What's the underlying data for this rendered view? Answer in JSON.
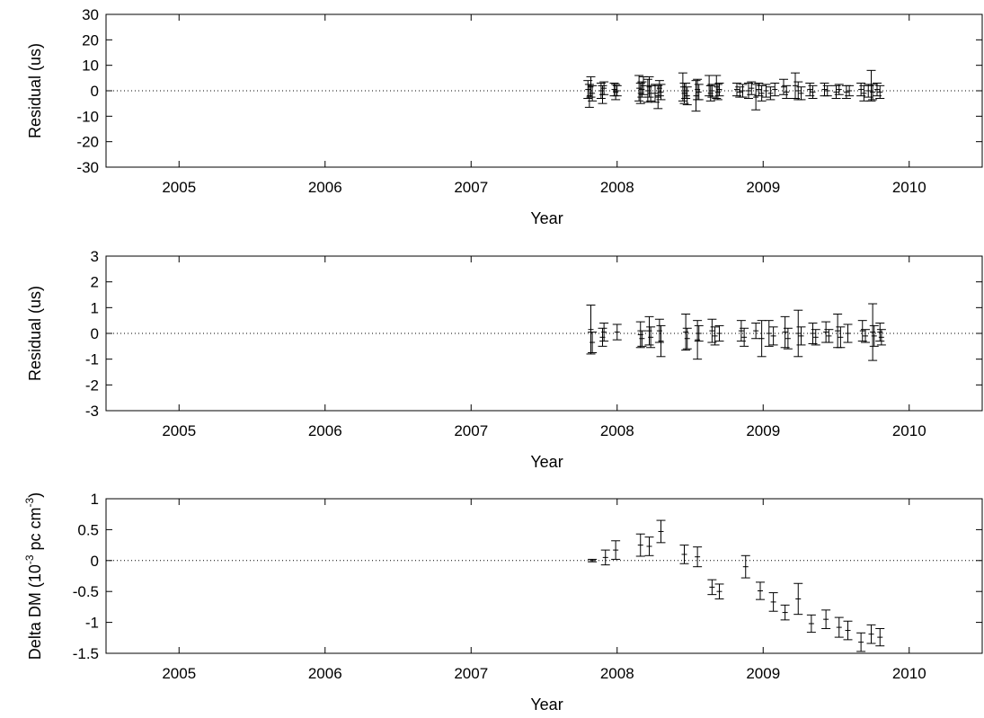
{
  "chart_data": [
    {
      "type": "scatter",
      "xlabel": "Year",
      "ylabel": "Residual (us)",
      "xlim": [
        2004.5,
        2010.5
      ],
      "ylim": [
        -30,
        30
      ],
      "xticks": [
        "2005",
        "2006",
        "2007",
        "2008",
        "2009",
        "2010"
      ],
      "yticks": [
        "-30",
        "-20",
        "-10",
        "0",
        "10",
        "20",
        "30"
      ],
      "grid": false,
      "zero_line": true,
      "series": [
        {
          "values": [
            {
              "x": 2007.8,
              "y": 0.5,
              "err": 3.5
            },
            {
              "x": 2007.81,
              "y": -2.0,
              "err": 4.5
            },
            {
              "x": 2007.82,
              "y": 1.5,
              "err": 4.0
            },
            {
              "x": 2007.83,
              "y": -1.0,
              "err": 3.0
            },
            {
              "x": 2007.89,
              "y": 0.0,
              "err": 3.0
            },
            {
              "x": 2007.9,
              "y": -1.5,
              "err": 3.5
            },
            {
              "x": 2007.91,
              "y": 1.0,
              "err": 2.5
            },
            {
              "x": 2007.98,
              "y": 0.5,
              "err": 2.5
            },
            {
              "x": 2007.99,
              "y": -0.5,
              "err": 3.0
            },
            {
              "x": 2008.0,
              "y": 0.0,
              "err": 2.0
            },
            {
              "x": 2008.15,
              "y": 1.0,
              "err": 5.0
            },
            {
              "x": 2008.16,
              "y": -1.0,
              "err": 4.0
            },
            {
              "x": 2008.17,
              "y": 0.5,
              "err": 3.0
            },
            {
              "x": 2008.18,
              "y": 2.0,
              "err": 3.5
            },
            {
              "x": 2008.21,
              "y": 0.0,
              "err": 4.5
            },
            {
              "x": 2008.22,
              "y": 1.5,
              "err": 4.0
            },
            {
              "x": 2008.23,
              "y": -1.0,
              "err": 3.0
            },
            {
              "x": 2008.26,
              "y": -1.0,
              "err": 3.5
            },
            {
              "x": 2008.28,
              "y": -2.5,
              "err": 4.5
            },
            {
              "x": 2008.29,
              "y": 1.0,
              "err": 3.0
            },
            {
              "x": 2008.3,
              "y": -0.5,
              "err": 3.0
            },
            {
              "x": 2008.45,
              "y": 1.5,
              "err": 5.5
            },
            {
              "x": 2008.46,
              "y": -1.0,
              "err": 4.0
            },
            {
              "x": 2008.47,
              "y": 0.0,
              "err": 3.0
            },
            {
              "x": 2008.48,
              "y": -2.0,
              "err": 3.5
            },
            {
              "x": 2008.54,
              "y": -2.0,
              "err": 6.0
            },
            {
              "x": 2008.55,
              "y": 0.5,
              "err": 4.0
            },
            {
              "x": 2008.56,
              "y": -0.5,
              "err": 3.0
            },
            {
              "x": 2008.63,
              "y": 2.0,
              "err": 4.0
            },
            {
              "x": 2008.64,
              "y": -1.0,
              "err": 3.0
            },
            {
              "x": 2008.65,
              "y": 0.0,
              "err": 2.5
            },
            {
              "x": 2008.68,
              "y": 1.5,
              "err": 4.5
            },
            {
              "x": 2008.69,
              "y": -0.5,
              "err": 3.0
            },
            {
              "x": 2008.7,
              "y": 0.5,
              "err": 2.5
            },
            {
              "x": 2008.82,
              "y": 0.5,
              "err": 2.5
            },
            {
              "x": 2008.84,
              "y": -0.5,
              "err": 2.0
            },
            {
              "x": 2008.86,
              "y": 0.0,
              "err": 2.5
            },
            {
              "x": 2008.9,
              "y": 0.0,
              "err": 3.0
            },
            {
              "x": 2008.92,
              "y": 1.0,
              "err": 2.5
            },
            {
              "x": 2008.95,
              "y": -2.5,
              "err": 5.0
            },
            {
              "x": 2008.97,
              "y": 0.5,
              "err": 2.5
            },
            {
              "x": 2008.99,
              "y": -1.0,
              "err": 3.0
            },
            {
              "x": 2009.02,
              "y": 0.0,
              "err": 2.5
            },
            {
              "x": 2009.05,
              "y": -1.0,
              "err": 2.5
            },
            {
              "x": 2009.08,
              "y": 0.5,
              "err": 2.5
            },
            {
              "x": 2009.14,
              "y": 1.5,
              "err": 3.0
            },
            {
              "x": 2009.16,
              "y": -0.5,
              "err": 2.5
            },
            {
              "x": 2009.22,
              "y": 2.0,
              "err": 5.0
            },
            {
              "x": 2009.24,
              "y": 0.0,
              "err": 3.5
            },
            {
              "x": 2009.26,
              "y": -1.0,
              "err": 2.5
            },
            {
              "x": 2009.32,
              "y": 0.5,
              "err": 2.5
            },
            {
              "x": 2009.34,
              "y": -0.5,
              "err": 2.5
            },
            {
              "x": 2009.42,
              "y": 0.5,
              "err": 2.5
            },
            {
              "x": 2009.44,
              "y": 0.0,
              "err": 2.0
            },
            {
              "x": 2009.5,
              "y": -0.5,
              "err": 2.5
            },
            {
              "x": 2009.52,
              "y": 0.5,
              "err": 2.0
            },
            {
              "x": 2009.57,
              "y": -0.5,
              "err": 2.5
            },
            {
              "x": 2009.59,
              "y": 0.0,
              "err": 2.0
            },
            {
              "x": 2009.67,
              "y": 0.5,
              "err": 2.5
            },
            {
              "x": 2009.69,
              "y": -1.0,
              "err": 3.0
            },
            {
              "x": 2009.72,
              "y": 0.0,
              "err": 2.5
            },
            {
              "x": 2009.74,
              "y": 2.0,
              "err": 6.0
            },
            {
              "x": 2009.75,
              "y": -0.5,
              "err": 3.0
            },
            {
              "x": 2009.78,
              "y": 0.5,
              "err": 2.5
            },
            {
              "x": 2009.8,
              "y": -0.5,
              "err": 2.5
            }
          ]
        }
      ]
    },
    {
      "type": "scatter",
      "xlabel": "Year",
      "ylabel": "Residual (us)",
      "xlim": [
        2004.5,
        2010.5
      ],
      "ylim": [
        -3,
        3
      ],
      "xticks": [
        "2005",
        "2006",
        "2007",
        "2008",
        "2009",
        "2010"
      ],
      "yticks": [
        "-3",
        "-2",
        "-1",
        "0",
        "1",
        "2",
        "3"
      ],
      "grid": false,
      "zero_line": true,
      "series": [
        {
          "values": [
            {
              "x": 2007.82,
              "y": 0.15,
              "err": 0.95
            },
            {
              "x": 2007.83,
              "y": -0.35,
              "err": 0.4
            },
            {
              "x": 2007.9,
              "y": -0.15,
              "err": 0.35
            },
            {
              "x": 2007.91,
              "y": 0.05,
              "err": 0.35
            },
            {
              "x": 2008.0,
              "y": 0.05,
              "err": 0.3
            },
            {
              "x": 2008.16,
              "y": -0.05,
              "err": 0.5
            },
            {
              "x": 2008.17,
              "y": -0.2,
              "err": 0.3
            },
            {
              "x": 2008.22,
              "y": 0.1,
              "err": 0.55
            },
            {
              "x": 2008.23,
              "y": -0.15,
              "err": 0.4
            },
            {
              "x": 2008.29,
              "y": 0.1,
              "err": 0.45
            },
            {
              "x": 2008.3,
              "y": -0.3,
              "err": 0.6
            },
            {
              "x": 2008.47,
              "y": 0.05,
              "err": 0.7
            },
            {
              "x": 2008.48,
              "y": -0.2,
              "err": 0.4
            },
            {
              "x": 2008.55,
              "y": -0.25,
              "err": 0.75
            },
            {
              "x": 2008.56,
              "y": 0.0,
              "err": 0.3
            },
            {
              "x": 2008.65,
              "y": 0.1,
              "err": 0.45
            },
            {
              "x": 2008.67,
              "y": -0.1,
              "err": 0.35
            },
            {
              "x": 2008.7,
              "y": 0.0,
              "err": 0.3
            },
            {
              "x": 2008.85,
              "y": 0.1,
              "err": 0.4
            },
            {
              "x": 2008.87,
              "y": -0.15,
              "err": 0.35
            },
            {
              "x": 2008.95,
              "y": 0.1,
              "err": 0.3
            },
            {
              "x": 2008.99,
              "y": -0.2,
              "err": 0.7
            },
            {
              "x": 2009.04,
              "y": 0.0,
              "err": 0.5
            },
            {
              "x": 2009.07,
              "y": -0.1,
              "err": 0.35
            },
            {
              "x": 2009.15,
              "y": 0.05,
              "err": 0.6
            },
            {
              "x": 2009.17,
              "y": -0.2,
              "err": 0.4
            },
            {
              "x": 2009.24,
              "y": 0.0,
              "err": 0.9
            },
            {
              "x": 2009.26,
              "y": -0.1,
              "err": 0.35
            },
            {
              "x": 2009.34,
              "y": 0.0,
              "err": 0.4
            },
            {
              "x": 2009.36,
              "y": -0.15,
              "err": 0.3
            },
            {
              "x": 2009.43,
              "y": 0.05,
              "err": 0.4
            },
            {
              "x": 2009.45,
              "y": -0.1,
              "err": 0.25
            },
            {
              "x": 2009.51,
              "y": 0.1,
              "err": 0.65
            },
            {
              "x": 2009.53,
              "y": -0.15,
              "err": 0.4
            },
            {
              "x": 2009.58,
              "y": 0.0,
              "err": 0.35
            },
            {
              "x": 2009.68,
              "y": 0.1,
              "err": 0.4
            },
            {
              "x": 2009.7,
              "y": -0.1,
              "err": 0.25
            },
            {
              "x": 2009.75,
              "y": 0.05,
              "err": 1.1
            },
            {
              "x": 2009.76,
              "y": -0.1,
              "err": 0.4
            },
            {
              "x": 2009.8,
              "y": 0.05,
              "err": 0.35
            },
            {
              "x": 2009.81,
              "y": -0.15,
              "err": 0.3
            }
          ]
        }
      ]
    },
    {
      "type": "scatter",
      "xlabel": "Year",
      "ylabel": "Delta DM (10",
      "ylabel_exp1": "-3",
      "ylabel_mid": " pc cm",
      "ylabel_exp2": "-3",
      "ylabel_end": ")",
      "xlim": [
        2004.5,
        2010.5
      ],
      "ylim": [
        -1.5,
        1
      ],
      "xticks": [
        "2005",
        "2006",
        "2007",
        "2008",
        "2009",
        "2010"
      ],
      "yticks": [
        "-1.5",
        "-1",
        "-0.5",
        "0",
        "0.5",
        "1"
      ],
      "grid": false,
      "zero_line": true,
      "series": [
        {
          "values": [
            {
              "x": 2007.83,
              "y": 0.0,
              "err": 0.02
            },
            {
              "x": 2007.92,
              "y": 0.05,
              "err": 0.12
            },
            {
              "x": 2007.99,
              "y": 0.17,
              "err": 0.15
            },
            {
              "x": 2008.16,
              "y": 0.25,
              "err": 0.18
            },
            {
              "x": 2008.22,
              "y": 0.23,
              "err": 0.15
            },
            {
              "x": 2008.3,
              "y": 0.47,
              "err": 0.18
            },
            {
              "x": 2008.46,
              "y": 0.1,
              "err": 0.15
            },
            {
              "x": 2008.55,
              "y": 0.06,
              "err": 0.16
            },
            {
              "x": 2008.65,
              "y": -0.43,
              "err": 0.12
            },
            {
              "x": 2008.7,
              "y": -0.5,
              "err": 0.12
            },
            {
              "x": 2008.88,
              "y": -0.1,
              "err": 0.18
            },
            {
              "x": 2008.98,
              "y": -0.49,
              "err": 0.14
            },
            {
              "x": 2009.07,
              "y": -0.67,
              "err": 0.15
            },
            {
              "x": 2009.15,
              "y": -0.84,
              "err": 0.12
            },
            {
              "x": 2009.24,
              "y": -0.62,
              "err": 0.25
            },
            {
              "x": 2009.33,
              "y": -1.02,
              "err": 0.14
            },
            {
              "x": 2009.43,
              "y": -0.95,
              "err": 0.15
            },
            {
              "x": 2009.52,
              "y": -1.08,
              "err": 0.16
            },
            {
              "x": 2009.58,
              "y": -1.13,
              "err": 0.15
            },
            {
              "x": 2009.67,
              "y": -1.32,
              "err": 0.15
            },
            {
              "x": 2009.74,
              "y": -1.19,
              "err": 0.15
            },
            {
              "x": 2009.8,
              "y": -1.24,
              "err": 0.14
            }
          ]
        }
      ]
    }
  ]
}
